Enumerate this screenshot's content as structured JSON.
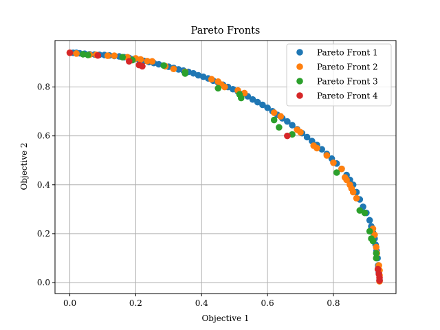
{
  "chart_data": {
    "type": "scatter",
    "title": "Pareto Fronts",
    "xlabel": "Objective 1",
    "ylabel": "Objective 2",
    "xlim": [
      -0.045,
      0.99
    ],
    "ylim": [
      -0.045,
      0.99
    ],
    "xticks": [
      "0.0",
      "0.2",
      "0.4",
      "0.6",
      "0.8"
    ],
    "yticks": [
      "0.0",
      "0.2",
      "0.4",
      "0.6",
      "0.8"
    ],
    "grid": true,
    "legend_position": "top-right",
    "series": [
      {
        "name": "Pareto Front 1",
        "color": "#1f77b4",
        "points": [
          [
            0.01,
            0.94
          ],
          [
            0.02,
            0.94
          ],
          [
            0.03,
            0.938
          ],
          [
            0.045,
            0.936
          ],
          [
            0.06,
            0.934
          ],
          [
            0.075,
            0.933
          ],
          [
            0.09,
            0.932
          ],
          [
            0.105,
            0.931
          ],
          [
            0.12,
            0.929
          ],
          [
            0.135,
            0.927
          ],
          [
            0.15,
            0.925
          ],
          [
            0.165,
            0.922
          ],
          [
            0.18,
            0.919
          ],
          [
            0.195,
            0.915
          ],
          [
            0.21,
            0.911
          ],
          [
            0.225,
            0.907
          ],
          [
            0.24,
            0.902
          ],
          [
            0.255,
            0.898
          ],
          [
            0.27,
            0.893
          ],
          [
            0.285,
            0.888
          ],
          [
            0.3,
            0.883
          ],
          [
            0.315,
            0.878
          ],
          [
            0.33,
            0.872
          ],
          [
            0.345,
            0.867
          ],
          [
            0.36,
            0.862
          ],
          [
            0.375,
            0.856
          ],
          [
            0.39,
            0.848
          ],
          [
            0.405,
            0.842
          ],
          [
            0.42,
            0.835
          ],
          [
            0.435,
            0.826
          ],
          [
            0.45,
            0.818
          ],
          [
            0.465,
            0.809
          ],
          [
            0.48,
            0.8
          ],
          [
            0.495,
            0.791
          ],
          [
            0.51,
            0.782
          ],
          [
            0.525,
            0.772
          ],
          [
            0.54,
            0.762
          ],
          [
            0.555,
            0.749
          ],
          [
            0.57,
            0.738
          ],
          [
            0.585,
            0.727
          ],
          [
            0.6,
            0.715
          ],
          [
            0.615,
            0.701
          ],
          [
            0.63,
            0.686
          ],
          [
            0.645,
            0.672
          ],
          [
            0.66,
            0.659
          ],
          [
            0.675,
            0.644
          ],
          [
            0.69,
            0.627
          ],
          [
            0.705,
            0.611
          ],
          [
            0.72,
            0.595
          ],
          [
            0.735,
            0.579
          ],
          [
            0.75,
            0.563
          ],
          [
            0.765,
            0.545
          ],
          [
            0.78,
            0.526
          ],
          [
            0.795,
            0.507
          ],
          [
            0.81,
            0.487
          ],
          [
            0.825,
            0.465
          ],
          [
            0.84,
            0.44
          ],
          [
            0.85,
            0.42
          ],
          [
            0.86,
            0.4
          ],
          [
            0.87,
            0.37
          ],
          [
            0.88,
            0.34
          ],
          [
            0.89,
            0.31
          ],
          [
            0.9,
            0.285
          ],
          [
            0.91,
            0.255
          ],
          [
            0.915,
            0.23
          ],
          [
            0.92,
            0.205
          ],
          [
            0.925,
            0.18
          ],
          [
            0.928,
            0.155
          ],
          [
            0.931,
            0.13
          ],
          [
            0.934,
            0.1
          ],
          [
            0.936,
            0.07
          ],
          [
            0.938,
            0.04
          ],
          [
            0.94,
            0.01
          ]
        ]
      },
      {
        "name": "Pareto Front 2",
        "color": "#ff7f0e",
        "points": [
          [
            0.0,
            0.94
          ],
          [
            0.02,
            0.937
          ],
          [
            0.06,
            0.932
          ],
          [
            0.08,
            0.932
          ],
          [
            0.115,
            0.928
          ],
          [
            0.135,
            0.928
          ],
          [
            0.175,
            0.922
          ],
          [
            0.2,
            0.917
          ],
          [
            0.215,
            0.913
          ],
          [
            0.235,
            0.906
          ],
          [
            0.25,
            0.905
          ],
          [
            0.29,
            0.885
          ],
          [
            0.315,
            0.874
          ],
          [
            0.35,
            0.862
          ],
          [
            0.43,
            0.832
          ],
          [
            0.45,
            0.822
          ],
          [
            0.46,
            0.81
          ],
          [
            0.47,
            0.8
          ],
          [
            0.51,
            0.786
          ],
          [
            0.53,
            0.775
          ],
          [
            0.62,
            0.695
          ],
          [
            0.64,
            0.68
          ],
          [
            0.69,
            0.625
          ],
          [
            0.7,
            0.615
          ],
          [
            0.74,
            0.56
          ],
          [
            0.75,
            0.55
          ],
          [
            0.78,
            0.52
          ],
          [
            0.8,
            0.49
          ],
          [
            0.825,
            0.465
          ],
          [
            0.835,
            0.43
          ],
          [
            0.84,
            0.42
          ],
          [
            0.85,
            0.4
          ],
          [
            0.855,
            0.385
          ],
          [
            0.86,
            0.37
          ],
          [
            0.87,
            0.345
          ],
          [
            0.92,
            0.22
          ],
          [
            0.925,
            0.195
          ],
          [
            0.93,
            0.145
          ],
          [
            0.932,
            0.12
          ],
          [
            0.938,
            0.07
          ],
          [
            0.94,
            0.05
          ],
          [
            0.94,
            0.03
          ],
          [
            0.94,
            0.005
          ]
        ]
      },
      {
        "name": "Pareto Front 3",
        "color": "#2ca02c",
        "points": [
          [
            0.04,
            0.934
          ],
          [
            0.055,
            0.931
          ],
          [
            0.16,
            0.922
          ],
          [
            0.19,
            0.91
          ],
          [
            0.285,
            0.888
          ],
          [
            0.35,
            0.86
          ],
          [
            0.35,
            0.855
          ],
          [
            0.45,
            0.795
          ],
          [
            0.515,
            0.77
          ],
          [
            0.52,
            0.755
          ],
          [
            0.62,
            0.665
          ],
          [
            0.635,
            0.635
          ],
          [
            0.675,
            0.606
          ],
          [
            0.81,
            0.45
          ],
          [
            0.88,
            0.295
          ],
          [
            0.895,
            0.285
          ],
          [
            0.91,
            0.21
          ],
          [
            0.915,
            0.18
          ],
          [
            0.92,
            0.17
          ],
          [
            0.93,
            0.12
          ],
          [
            0.93,
            0.1
          ]
        ]
      },
      {
        "name": "Pareto Front 4",
        "color": "#d62728",
        "points": [
          [
            0.0,
            0.94
          ],
          [
            0.085,
            0.929
          ],
          [
            0.18,
            0.905
          ],
          [
            0.21,
            0.89
          ],
          [
            0.22,
            0.885
          ],
          [
            0.66,
            0.6
          ],
          [
            0.935,
            0.055
          ],
          [
            0.938,
            0.035
          ],
          [
            0.94,
            0.02
          ],
          [
            0.94,
            0.008
          ]
        ]
      }
    ]
  }
}
